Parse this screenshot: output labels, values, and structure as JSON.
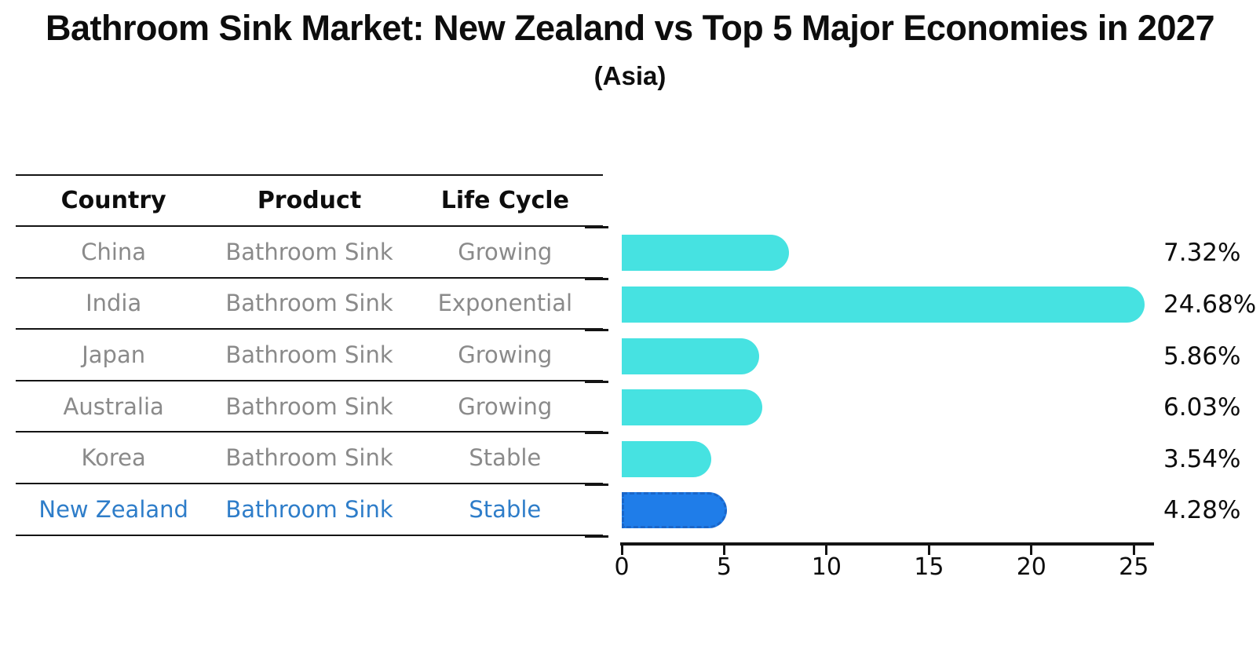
{
  "header": {
    "title": "Bathroom Sink Market: New Zealand vs Top 5 Major Economies in 2027",
    "subtitle": "(Asia)"
  },
  "table": {
    "columns": [
      "Country",
      "Product",
      "Life Cycle"
    ]
  },
  "chart_data": {
    "type": "bar",
    "orientation": "horizontal",
    "title": "Bathroom Sink Market: New Zealand vs Top 5 Major Economies in 2027",
    "subtitle": "(Asia)",
    "xlabel": "",
    "ylabel": "",
    "xlim": [
      0,
      26
    ],
    "x_ticks": [
      0,
      5,
      10,
      15,
      20,
      25
    ],
    "grid": false,
    "legend": false,
    "categories": [
      "China",
      "India",
      "Japan",
      "Australia",
      "Korea",
      "New Zealand"
    ],
    "values": [
      7.32,
      24.68,
      5.86,
      6.03,
      3.54,
      4.28
    ],
    "rows": [
      {
        "country": "China",
        "product": "Bathroom Sink",
        "life_cycle": "Growing",
        "value": 7.32,
        "value_label": "7.32%",
        "highlight": false
      },
      {
        "country": "India",
        "product": "Bathroom Sink",
        "life_cycle": "Exponential",
        "value": 24.68,
        "value_label": "24.68%",
        "highlight": false
      },
      {
        "country": "Japan",
        "product": "Bathroom Sink",
        "life_cycle": "Growing",
        "value": 5.86,
        "value_label": "5.86%",
        "highlight": false
      },
      {
        "country": "Australia",
        "product": "Bathroom Sink",
        "life_cycle": "Growing",
        "value": 6.03,
        "value_label": "6.03%",
        "highlight": false
      },
      {
        "country": "Korea",
        "product": "Bathroom Sink",
        "life_cycle": "Stable",
        "value": 3.54,
        "value_label": "3.54%",
        "highlight": false
      },
      {
        "country": "New Zealand",
        "product": "Bathroom Sink",
        "life_cycle": "Stable",
        "value": 4.28,
        "value_label": "4.28%",
        "highlight": true
      }
    ],
    "colors": {
      "bar": "#46e2e1",
      "highlight_bar": "#1f7de9",
      "highlight_border": "#1a66c9",
      "highlight_text": "#2e7dc9",
      "table_text": "#8a8a8a",
      "axis": "#141414",
      "text": "#0d0d0d"
    }
  }
}
